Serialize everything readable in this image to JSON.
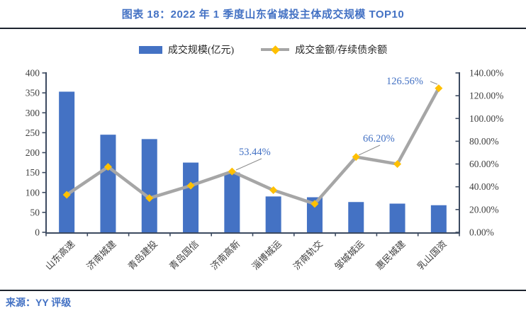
{
  "header": {
    "title": "图表 18：2022 年 1 季度山东省城投主体成交规模 TOP10"
  },
  "legend": {
    "items": [
      {
        "label": "成交规模(亿元)",
        "type": "bar"
      },
      {
        "label": "成交金额/存续债余额",
        "type": "line"
      }
    ]
  },
  "footer": {
    "source": "来源：YY 评级"
  },
  "colors": {
    "bar": "#4472C4",
    "line": "#A6A6A6",
    "marker": "#FFC000",
    "axis": "#3C4A60",
    "tick_text": "#3F3F3F",
    "annotation_text": "#4472C4",
    "title_text": "#4472C4"
  },
  "chart_data": {
    "type": "bar",
    "subtype": "combo-bar-line",
    "title": "2022 年 1 季度山东省城投主体成交规模 TOP10",
    "grid": false,
    "legend_position": "top",
    "categories": [
      "山东高速",
      "济南城建",
      "青岛建投",
      "青岛国信",
      "济南高新",
      "淄博城运",
      "济南轨交",
      "邹城城运",
      "惠民城建",
      "乳山国资"
    ],
    "series": [
      {
        "name": "成交规模(亿元)",
        "type": "bar",
        "axis": "left",
        "values": [
          353,
          245,
          234,
          175,
          150,
          90,
          88,
          76,
          72,
          68
        ]
      },
      {
        "name": "成交金额/存续债余额",
        "type": "line",
        "axis": "right",
        "unit": "%",
        "values": [
          33,
          57.5,
          30,
          41,
          53.44,
          37,
          25,
          66.2,
          60,
          126.56
        ]
      }
    ],
    "left_axis": {
      "min": 0,
      "max": 400,
      "step": 50
    },
    "right_axis": {
      "min": 0,
      "max": 140,
      "step": 20,
      "decimals": 2,
      "suffix": "%"
    },
    "annotations": [
      {
        "category": "济南高新",
        "text": "53.44%"
      },
      {
        "category": "邹城城运",
        "text": "66.20%"
      },
      {
        "category": "乳山国资",
        "text": "126.56%"
      }
    ]
  }
}
